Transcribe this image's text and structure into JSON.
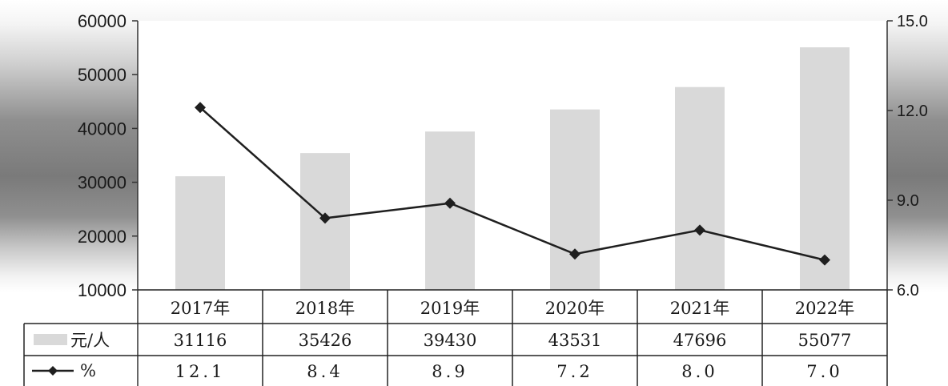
{
  "chart_data": {
    "type": "bar",
    "categories": [
      "2017年",
      "2018年",
      "2019年",
      "2020年",
      "2021年",
      "2022年"
    ],
    "series": [
      {
        "name": "元/人",
        "type": "bar",
        "axis": "left",
        "values": [
          31116,
          35426,
          39430,
          43531,
          47696,
          55077
        ],
        "display": [
          "31116",
          "35426",
          "39430",
          "43531",
          "47696",
          "55077"
        ]
      },
      {
        "name": "%",
        "type": "line",
        "axis": "right",
        "values": [
          12.1,
          8.4,
          8.9,
          7.2,
          8.0,
          7.0
        ],
        "display": [
          "12.1",
          "8.4",
          "8.9",
          "7.2",
          "8.0",
          "7.0"
        ]
      }
    ],
    "y_left": {
      "ylim": [
        10000,
        60000
      ],
      "ticks": [
        "10000",
        "20000",
        "30000",
        "40000",
        "50000",
        "60000"
      ]
    },
    "y_right": {
      "ylim": [
        6.0,
        15.0
      ],
      "ticks": [
        "6.0",
        "9.0",
        "12.0",
        "15.0"
      ]
    },
    "title": "",
    "xlabel": "",
    "ylabel": "",
    "legend": "data-table",
    "grid": false,
    "colors": {
      "bar": "#d9d9d9",
      "line": "#1f1f1f",
      "marker": "#1f1f1f"
    }
  }
}
